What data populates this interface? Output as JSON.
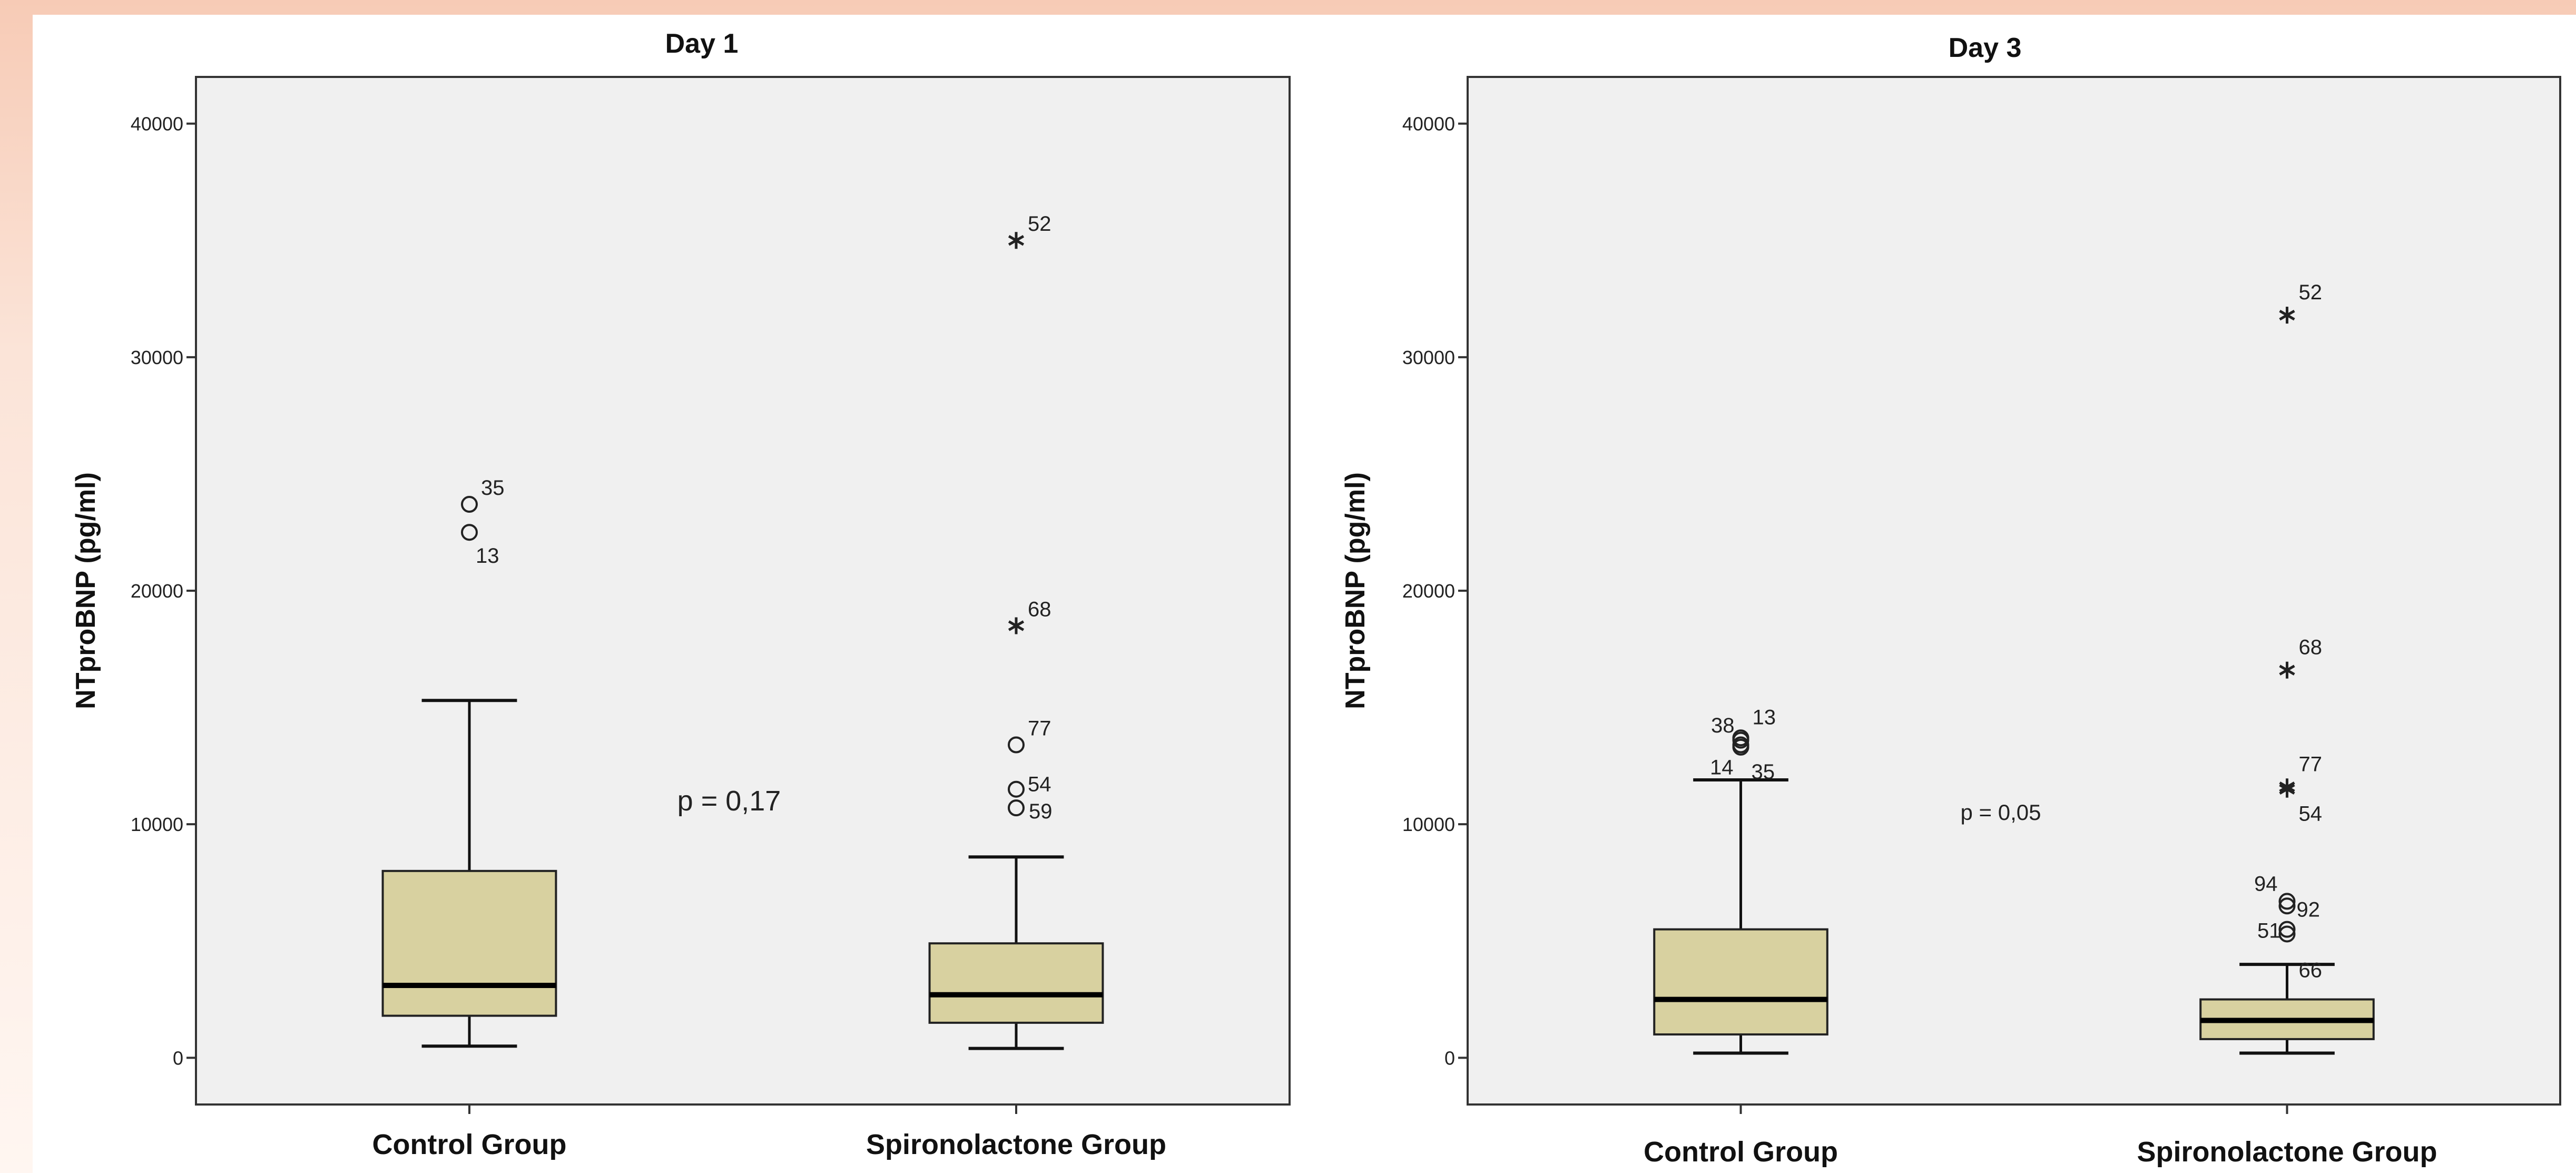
{
  "chart_data": [
    {
      "type": "box",
      "title": "Day 1",
      "ylabel": "NTproBNP (pg/ml)",
      "ylim": [
        -2000,
        42000
      ],
      "yticks": [
        0,
        10000,
        20000,
        30000,
        40000
      ],
      "ytick_labels": [
        "0",
        "10000",
        "20000",
        "30000",
        "40000"
      ],
      "annotation": "p = 0,17",
      "grid": false,
      "groups": [
        {
          "name": "Control Group",
          "whisker_low": 500,
          "q1": 1800,
          "median": 3100,
          "q3": 8000,
          "whisker_high": 15300,
          "outliers": [
            {
              "id": "35",
              "value": 23700,
              "marker": "circle"
            },
            {
              "id": "13",
              "value": 22500,
              "marker": "circle"
            }
          ]
        },
        {
          "name": "Spironolactone Group",
          "whisker_low": 400,
          "q1": 1500,
          "median": 2700,
          "q3": 4900,
          "whisker_high": 8600,
          "outliers": [
            {
              "id": "52",
              "value": 35000,
              "marker": "star"
            },
            {
              "id": "68",
              "value": 18500,
              "marker": "star"
            },
            {
              "id": "77",
              "value": 13400,
              "marker": "circle"
            },
            {
              "id": "54",
              "value": 11500,
              "marker": "circle"
            },
            {
              "id": "59",
              "value": 10700,
              "marker": "circle"
            }
          ]
        }
      ]
    },
    {
      "type": "box",
      "title": "Day 3",
      "ylabel": "NTproBNP (pg/ml)",
      "ylim": [
        -2000,
        42000
      ],
      "yticks": [
        0,
        10000,
        20000,
        30000,
        40000
      ],
      "ytick_labels": [
        "0",
        "10000",
        "20000",
        "30000",
        "40000"
      ],
      "annotation": "p = 0,05",
      "grid": false,
      "groups": [
        {
          "name": "Control Group",
          "whisker_low": 200,
          "q1": 1000,
          "median": 2500,
          "q3": 5500,
          "whisker_high": 11900,
          "outliers": [
            {
              "id": "38",
              "value": 13700,
              "marker": "circle"
            },
            {
              "id": "13",
              "value": 13600,
              "marker": "circle"
            },
            {
              "id": "14",
              "value": 13400,
              "marker": "circle"
            },
            {
              "id": "35",
              "value": 13300,
              "marker": "circle"
            }
          ]
        },
        {
          "name": "Spironolactone Group",
          "whisker_low": 200,
          "q1": 800,
          "median": 1600,
          "q3": 2500,
          "whisker_high": 4000,
          "outliers": [
            {
              "id": "52",
              "value": 31800,
              "marker": "star"
            },
            {
              "id": "68",
              "value": 16600,
              "marker": "star"
            },
            {
              "id": "77",
              "value": 11600,
              "marker": "star"
            },
            {
              "id": "54",
              "value": 11500,
              "marker": "star"
            },
            {
              "id": "94",
              "value": 6700,
              "marker": "circle"
            },
            {
              "id": "92",
              "value": 6500,
              "marker": "circle"
            },
            {
              "id": "51",
              "value": 5500,
              "marker": "circle"
            },
            {
              "id": "66",
              "value": 5300,
              "marker": "circle"
            }
          ]
        }
      ]
    }
  ],
  "colors": {
    "box_fill": "#d8d1a0",
    "panel_bg": "#f0f0f0",
    "frame": "#333333",
    "median": "#000000",
    "page_bg": "#ffffff"
  }
}
